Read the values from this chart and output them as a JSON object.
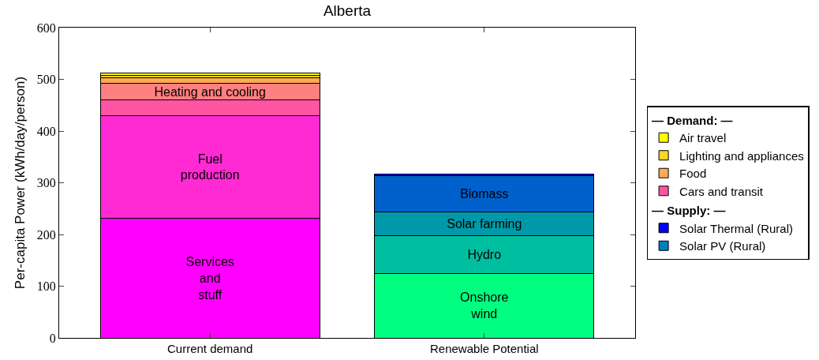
{
  "chart_data": {
    "type": "bar",
    "stacked": true,
    "title": "Alberta",
    "ylabel": "Per-capita Power (kWh/day/person)",
    "categories": [
      "Current demand",
      "Renewable Potential"
    ],
    "series": [
      {
        "color": "#ff00ff",
        "values": [
          231,
          null
        ]
      },
      {
        "color": "#ff2ad4",
        "values": [
          199,
          null
        ]
      },
      {
        "name": "Cars and transit",
        "color": "#ff55a3",
        "values": [
          30,
          null
        ]
      },
      {
        "color": "#ff8080",
        "values": [
          32,
          null
        ]
      },
      {
        "name": "Food",
        "color": "#ffaa55",
        "values": [
          11,
          null
        ]
      },
      {
        "name": "Lighting and appliances",
        "color": "#ffd42a",
        "values": [
          5,
          null
        ]
      },
      {
        "name": "Air travel",
        "color": "#ffff00",
        "values": [
          4,
          null
        ]
      },
      {
        "color": "#00ff80",
        "values": [
          null,
          124
        ]
      },
      {
        "color": "#00bfa0",
        "values": [
          null,
          74
        ]
      },
      {
        "color": "#0099aa",
        "values": [
          null,
          46
        ]
      },
      {
        "color": "#0060cc",
        "values": [
          null,
          69
        ]
      },
      {
        "name": "Solar PV (Rural)",
        "color": "#0080c0",
        "values": [
          null,
          1
        ]
      },
      {
        "name": "Solar Thermal (Rural)",
        "color": "#0000ff",
        "values": [
          null,
          3
        ]
      }
    ],
    "annotations": [
      "— Demand: —",
      "— Supply: —",
      "Services\nand\nstuff",
      "Fuel\nproduction",
      "Heating and cooling",
      "Onshore\nwind",
      "Hydro",
      "Solar farming",
      "Biomass"
    ],
    "ylim": [
      0,
      600
    ],
    "yticks": [
      0,
      100,
      200,
      300,
      400,
      500,
      600
    ],
    "legend": "right"
  }
}
